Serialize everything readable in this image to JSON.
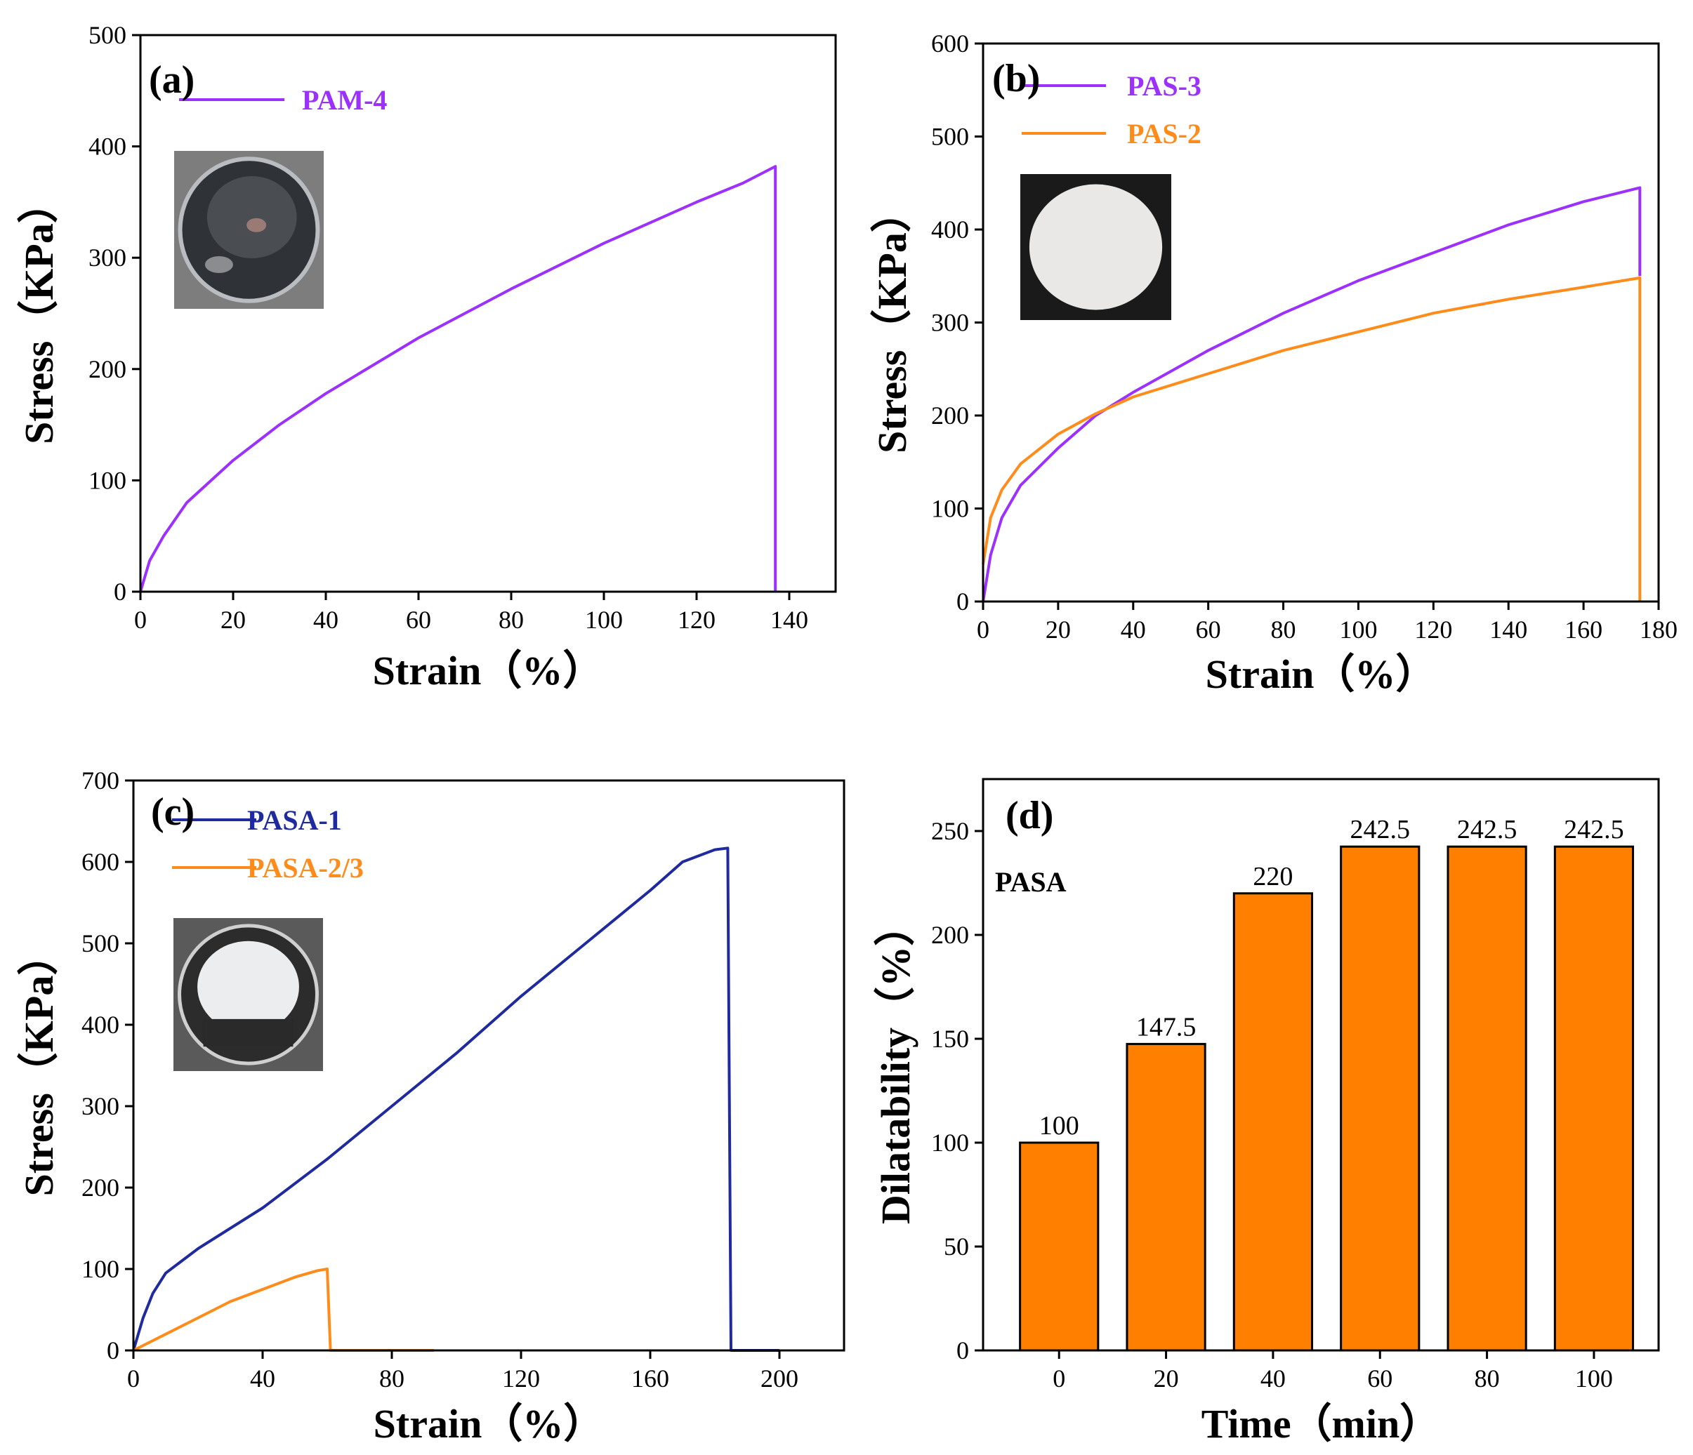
{
  "chart_data": [
    {
      "panel": "(a)",
      "type": "line",
      "xlabel": "Strain（%）",
      "ylabel": "Stress（KPa）",
      "xlim": [
        0,
        150
      ],
      "ylim": [
        0,
        500
      ],
      "x_ticks": [
        "0",
        "20",
        "40",
        "60",
        "80",
        "100",
        "120",
        "140"
      ],
      "y_ticks": [
        "0",
        "100",
        "200",
        "300",
        "400",
        "500"
      ],
      "grid": false,
      "legend_placement": "top-left",
      "inset_photo": "dark gel disc in petri dish",
      "series": [
        {
          "name": "PAM-4",
          "color": "#9B30FF",
          "points": [
            [
              0,
              0
            ],
            [
              2,
              28
            ],
            [
              5,
              50
            ],
            [
              10,
              80
            ],
            [
              20,
              118
            ],
            [
              30,
              150
            ],
            [
              40,
              178
            ],
            [
              60,
              228
            ],
            [
              80,
              272
            ],
            [
              100,
              313
            ],
            [
              120,
              350
            ],
            [
              130,
              367
            ],
            [
              137,
              382
            ],
            [
              137,
              0
            ]
          ]
        }
      ]
    },
    {
      "panel": "(b)",
      "type": "line",
      "xlabel": "Strain（%）",
      "ylabel": "Stress（KPa）",
      "xlim": [
        0,
        180
      ],
      "ylim": [
        0,
        600
      ],
      "x_ticks": [
        "0",
        "20",
        "40",
        "60",
        "80",
        "100",
        "120",
        "140",
        "160",
        "180"
      ],
      "y_ticks": [
        "0",
        "100",
        "200",
        "300",
        "400",
        "500",
        "600"
      ],
      "grid": false,
      "legend_placement": "top-left",
      "inset_photo": "white circular disc on black background",
      "series": [
        {
          "name": "PAS-3",
          "color": "#9B30FF",
          "points": [
            [
              0,
              0
            ],
            [
              2,
              50
            ],
            [
              5,
              90
            ],
            [
              10,
              125
            ],
            [
              20,
              165
            ],
            [
              30,
              200
            ],
            [
              40,
              225
            ],
            [
              60,
              270
            ],
            [
              80,
              310
            ],
            [
              100,
              345
            ],
            [
              120,
              375
            ],
            [
              140,
              405
            ],
            [
              160,
              430
            ],
            [
              175,
              445
            ],
            [
              175,
              350
            ]
          ]
        },
        {
          "name": "PAS-2",
          "color": "#FF8C1A",
          "points": [
            [
              0,
              40
            ],
            [
              2,
              90
            ],
            [
              5,
              120
            ],
            [
              10,
              148
            ],
            [
              20,
              180
            ],
            [
              30,
              202
            ],
            [
              40,
              220
            ],
            [
              60,
              245
            ],
            [
              80,
              270
            ],
            [
              100,
              290
            ],
            [
              120,
              310
            ],
            [
              140,
              325
            ],
            [
              160,
              338
            ],
            [
              175,
              348
            ],
            [
              175,
              0
            ]
          ]
        }
      ]
    },
    {
      "panel": "(c)",
      "type": "line",
      "xlabel": "Strain（%）",
      "ylabel": "Stress（KPa）",
      "xlim": [
        0,
        220
      ],
      "ylim": [
        0,
        700
      ],
      "x_ticks": [
        "0",
        "40",
        "80",
        "120",
        "160",
        "200"
      ],
      "y_ticks": [
        "0",
        "100",
        "200",
        "300",
        "400",
        "500",
        "600",
        "700"
      ],
      "grid": false,
      "legend_placement": "top-left",
      "inset_photo": "white gel in clear glass dish",
      "series": [
        {
          "name": "PASA-1",
          "color": "#1F2A9E",
          "points": [
            [
              0,
              0
            ],
            [
              3,
              40
            ],
            [
              6,
              70
            ],
            [
              10,
              95
            ],
            [
              20,
              125
            ],
            [
              40,
              175
            ],
            [
              60,
              235
            ],
            [
              80,
              300
            ],
            [
              100,
              365
            ],
            [
              120,
              435
            ],
            [
              140,
              500
            ],
            [
              160,
              565
            ],
            [
              170,
              600
            ],
            [
              180,
              615
            ],
            [
              184,
              617
            ],
            [
              185,
              0
            ],
            [
              200,
              0
            ]
          ]
        },
        {
          "name": "PASA-2/3",
          "color": "#FF8C1A",
          "points": [
            [
              0,
              0
            ],
            [
              10,
              20
            ],
            [
              20,
              40
            ],
            [
              30,
              60
            ],
            [
              40,
              75
            ],
            [
              50,
              90
            ],
            [
              57,
              98
            ],
            [
              60,
              100
            ],
            [
              61,
              0
            ],
            [
              93,
              0
            ]
          ]
        }
      ]
    },
    {
      "panel": "(d)",
      "type": "bar",
      "xlabel": "Time（min）",
      "ylabel": "Dilatability（%）",
      "ylim": [
        0,
        275
      ],
      "y_ticks": [
        "0",
        "50",
        "100",
        "150",
        "200",
        "250"
      ],
      "grid": false,
      "annotation": "PASA",
      "bar_color": "#FF8000",
      "categories": [
        "0",
        "20",
        "40",
        "60",
        "80",
        "100"
      ],
      "values": [
        100,
        147.5,
        220,
        242.5,
        242.5,
        242.5
      ],
      "value_labels": [
        "100",
        "147.5",
        "220",
        "242.5",
        "242.5",
        "242.5"
      ]
    }
  ]
}
